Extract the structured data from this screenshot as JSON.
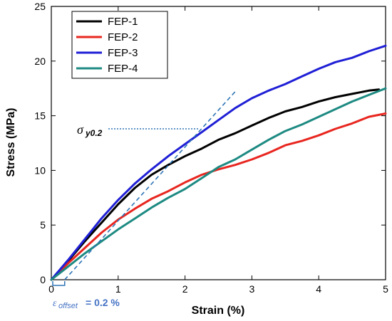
{
  "chart_data": {
    "type": "line",
    "title": "",
    "xlabel": "Strain (%)",
    "ylabel": "Stress (MPa)",
    "xlim": [
      0,
      5
    ],
    "ylim": [
      0,
      25
    ],
    "x_ticks": [
      "0",
      "1",
      "2",
      "3",
      "4",
      "5"
    ],
    "y_ticks": [
      "0",
      "5",
      "10",
      "15",
      "20",
      "25"
    ],
    "grid": false,
    "legend_position": "top-left",
    "series": [
      {
        "name": "FEP-1",
        "color": "#000000",
        "points": [
          [
            0,
            0
          ],
          [
            0.25,
            1.7
          ],
          [
            0.5,
            3.5
          ],
          [
            0.75,
            5.2
          ],
          [
            1.0,
            6.9
          ],
          [
            1.25,
            8.4
          ],
          [
            1.5,
            9.6
          ],
          [
            1.75,
            10.5
          ],
          [
            2.0,
            11.3
          ],
          [
            2.25,
            12.0
          ],
          [
            2.5,
            12.8
          ],
          [
            2.75,
            13.4
          ],
          [
            3.0,
            14.1
          ],
          [
            3.25,
            14.8
          ],
          [
            3.5,
            15.4
          ],
          [
            3.75,
            15.8
          ],
          [
            4.0,
            16.3
          ],
          [
            4.25,
            16.7
          ],
          [
            4.5,
            17.0
          ],
          [
            4.75,
            17.3
          ],
          [
            4.9,
            17.4
          ]
        ]
      },
      {
        "name": "FEP-2",
        "color": "#e8261f",
        "points": [
          [
            0,
            0
          ],
          [
            0.25,
            1.5
          ],
          [
            0.5,
            2.9
          ],
          [
            0.75,
            4.3
          ],
          [
            1.0,
            5.5
          ],
          [
            1.25,
            6.5
          ],
          [
            1.5,
            7.4
          ],
          [
            1.75,
            8.1
          ],
          [
            2.0,
            8.9
          ],
          [
            2.25,
            9.6
          ],
          [
            2.5,
            10.1
          ],
          [
            2.75,
            10.5
          ],
          [
            3.0,
            11.0
          ],
          [
            3.25,
            11.6
          ],
          [
            3.5,
            12.3
          ],
          [
            3.75,
            12.7
          ],
          [
            4.0,
            13.2
          ],
          [
            4.25,
            13.8
          ],
          [
            4.5,
            14.3
          ],
          [
            4.75,
            14.9
          ],
          [
            5.0,
            15.2
          ]
        ]
      },
      {
        "name": "FEP-3",
        "color": "#1f1fd6",
        "points": [
          [
            0,
            0
          ],
          [
            0.25,
            1.8
          ],
          [
            0.5,
            3.7
          ],
          [
            0.75,
            5.6
          ],
          [
            1.0,
            7.3
          ],
          [
            1.25,
            8.8
          ],
          [
            1.5,
            10.1
          ],
          [
            1.75,
            11.3
          ],
          [
            2.0,
            12.4
          ],
          [
            2.25,
            13.5
          ],
          [
            2.5,
            14.6
          ],
          [
            2.75,
            15.7
          ],
          [
            3.0,
            16.6
          ],
          [
            3.25,
            17.3
          ],
          [
            3.5,
            17.9
          ],
          [
            3.75,
            18.6
          ],
          [
            4.0,
            19.3
          ],
          [
            4.25,
            19.9
          ],
          [
            4.5,
            20.3
          ],
          [
            4.75,
            20.9
          ],
          [
            5.0,
            21.4
          ]
        ]
      },
      {
        "name": "FEP-4",
        "color": "#1d8a82",
        "points": [
          [
            0,
            0
          ],
          [
            0.25,
            1.2
          ],
          [
            0.5,
            2.4
          ],
          [
            0.75,
            3.5
          ],
          [
            1.0,
            4.6
          ],
          [
            1.25,
            5.6
          ],
          [
            1.5,
            6.6
          ],
          [
            1.75,
            7.5
          ],
          [
            2.0,
            8.3
          ],
          [
            2.25,
            9.3
          ],
          [
            2.5,
            10.3
          ],
          [
            2.75,
            11.0
          ],
          [
            3.0,
            11.9
          ],
          [
            3.25,
            12.8
          ],
          [
            3.5,
            13.6
          ],
          [
            3.75,
            14.2
          ],
          [
            4.0,
            14.9
          ],
          [
            4.25,
            15.6
          ],
          [
            4.5,
            16.3
          ],
          [
            4.75,
            16.9
          ],
          [
            5.0,
            17.5
          ]
        ]
      }
    ],
    "annotations": {
      "yield_label": "σ",
      "yield_sub": "y0.2",
      "yield_stress": 13.8,
      "offset_line": [
        [
          0.2,
          0
        ],
        [
          2.75,
          17.2
        ]
      ],
      "offset_color": "#2e75b6",
      "offset_label": "ε",
      "offset_sub": "offset",
      "offset_value": "= 0.2 %"
    }
  }
}
